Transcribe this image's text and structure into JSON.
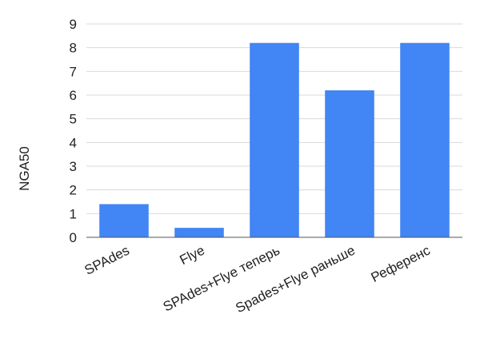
{
  "chart_data": {
    "type": "bar",
    "title": "",
    "xlabel": "",
    "ylabel": "NGA50",
    "ylim": [
      0,
      9
    ],
    "yticks": [
      0,
      1,
      2,
      3,
      4,
      5,
      6,
      7,
      8,
      9
    ],
    "grid": true,
    "legend": "none",
    "bar_color": "#4285f4",
    "categories": [
      "SPAdes",
      "Flye",
      "SPAdes+Flye теперь",
      "Spades+Flye раньше",
      "Референс"
    ],
    "values": [
      1.4,
      0.4,
      8.2,
      6.2,
      8.2
    ]
  }
}
